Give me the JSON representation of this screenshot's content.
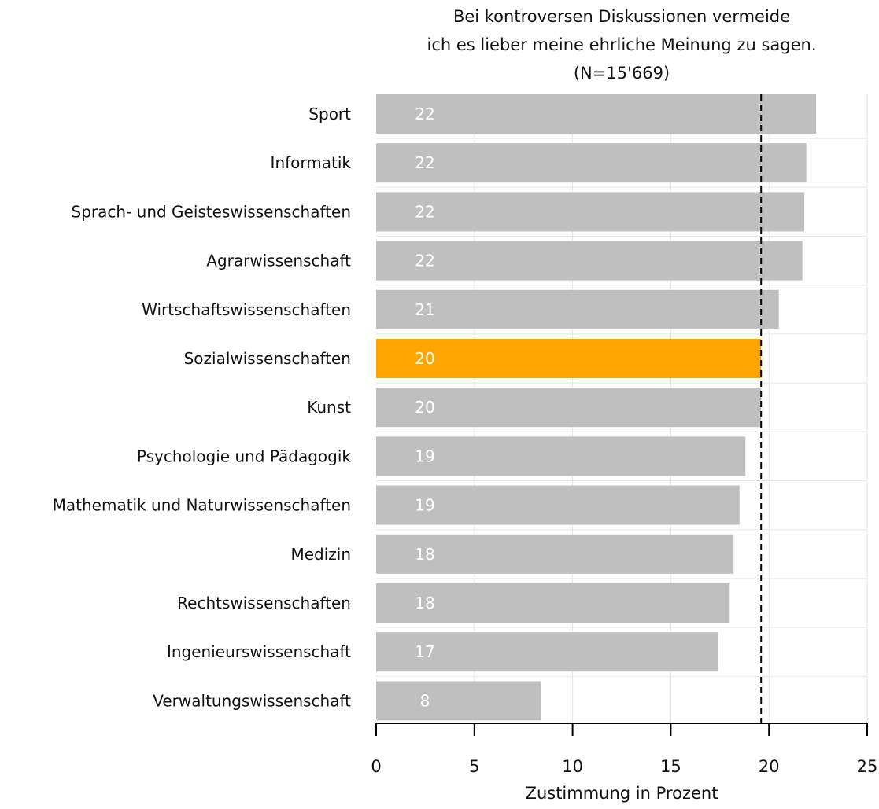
{
  "chart_data": {
    "type": "bar",
    "orientation": "horizontal",
    "title": [
      "Bei kontroversen Diskussionen vermeide",
      "ich es lieber meine ehrliche Meinung zu sagen.",
      "(N=15'669)"
    ],
    "xlabel": "Zustimmung in Prozent",
    "ylabel": "",
    "xlim": [
      0,
      25
    ],
    "xticks": [
      0,
      5,
      10,
      15,
      20,
      25
    ],
    "grid": true,
    "reference_line": 19.6,
    "categories": [
      "Sport",
      "Informatik",
      "Sprach- und Geisteswissenschaften",
      "Agrarwissenschaft",
      "Wirtschaftswissenschaften",
      "Sozialwissenschaften",
      "Kunst",
      "Psychologie und Pädagogik",
      "Mathematik und Naturwissenschaften",
      "Medizin",
      "Rechtswissenschaften",
      "Ingenieurswissenschaft",
      "Verwaltungswissenschaft"
    ],
    "values": [
      22.4,
      21.9,
      21.8,
      21.7,
      20.5,
      19.6,
      19.6,
      18.8,
      18.5,
      18.2,
      18.0,
      17.4,
      8.4
    ],
    "data_labels": [
      "22",
      "22",
      "22",
      "22",
      "21",
      "20",
      "20",
      "19",
      "19",
      "18",
      "18",
      "17",
      "8"
    ],
    "highlight_index": 5,
    "colors": {
      "bar": "#bfbfbf",
      "highlight": "#ffa500",
      "grid": "#e6e6e6",
      "axis": "#000000",
      "reference": "#000000",
      "label": "#ffffff"
    }
  }
}
